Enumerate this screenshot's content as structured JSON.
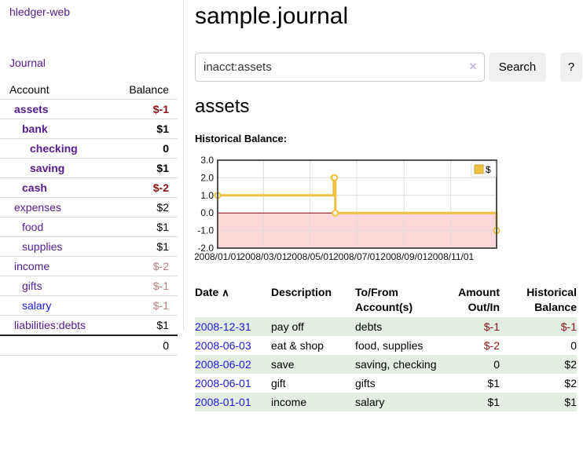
{
  "colors": {
    "link_purple": "#551a8b",
    "link_blue": "#1b1be0",
    "negative_strong": "#8b1212",
    "negative_soft": "#b97f7f",
    "row_stripe_green": "#e2eee2",
    "chart_line_gold": "#edc240",
    "chart_negative_fill": "#fcd8d8",
    "chart_zero_line": "#7c0a0a",
    "chart_border": "#545454",
    "chart_grid": "#dcdcdc"
  },
  "sidebar": {
    "app_title": "hledger-web",
    "journal_link": "Journal",
    "header": {
      "account": "Account",
      "balance": "Balance"
    },
    "accounts": [
      {
        "name": "assets",
        "balance": "$-1",
        "level": 0,
        "bold": true,
        "neg": "strong",
        "link": "purple"
      },
      {
        "name": "bank",
        "balance": "$1",
        "level": 1,
        "bold": true,
        "neg": "none",
        "link": "purple"
      },
      {
        "name": "checking",
        "balance": "0",
        "level": 2,
        "bold": true,
        "neg": "none",
        "link": "purple"
      },
      {
        "name": "saving",
        "balance": "$1",
        "level": 2,
        "bold": true,
        "neg": "none",
        "link": "purple"
      },
      {
        "name": "cash",
        "balance": "$-2",
        "level": 1,
        "bold": true,
        "neg": "strong",
        "link": "purple"
      },
      {
        "name": "expenses",
        "balance": "$2",
        "level": 0,
        "bold": false,
        "neg": "none",
        "link": "purple"
      },
      {
        "name": "food",
        "balance": "$1",
        "level": 1,
        "bold": false,
        "neg": "none",
        "link": "purple"
      },
      {
        "name": "supplies",
        "balance": "$1",
        "level": 1,
        "bold": false,
        "neg": "none",
        "link": "purple"
      },
      {
        "name": "income",
        "balance": "$-2",
        "level": 0,
        "bold": false,
        "neg": "soft",
        "link": "purple"
      },
      {
        "name": "gifts",
        "balance": "$-1",
        "level": 1,
        "bold": false,
        "neg": "soft",
        "link": "purple"
      },
      {
        "name": "salary",
        "balance": "$-1",
        "level": 1,
        "bold": false,
        "neg": "soft",
        "link": "blue"
      },
      {
        "name": "liabilities:debts",
        "balance": "$1",
        "level": 0,
        "bold": false,
        "neg": "none",
        "link": "purple"
      }
    ],
    "total": "0"
  },
  "main": {
    "title": "sample.journal",
    "search": {
      "value": "inacct:assets",
      "clear_icon": "×",
      "search_button": "Search",
      "help_button": "?"
    },
    "account_heading": "assets",
    "chart_title": "Historical Balance:"
  },
  "chart_data": {
    "type": "line",
    "step": true,
    "title": "Historical Balance",
    "legend": "$",
    "legend_position": "top-right",
    "grid": true,
    "xlim": [
      "2008-01-01",
      "2008-12-31"
    ],
    "ylim": [
      -2.0,
      3.0
    ],
    "y_ticks": [
      "3.0",
      "2.0",
      "1.0",
      "0.0",
      "-1.0",
      "-2.0"
    ],
    "y_tick_values": [
      3,
      2,
      1,
      0,
      -1,
      -2
    ],
    "x_ticks": [
      "2008/01/01",
      "2008/03/01",
      "2008/05/01",
      "2008/07/01",
      "2008/09/01",
      "2008/11/01"
    ],
    "x_tick_dates": [
      "2008-01-01",
      "2008-03-01",
      "2008-05-01",
      "2008-07-01",
      "2008-09-01",
      "2008-11-01"
    ],
    "negative_region_below": 0,
    "series": [
      {
        "name": "$",
        "color": "#edc240",
        "points": [
          [
            "2008-01-01",
            1
          ],
          [
            "2008-06-01",
            2
          ],
          [
            "2008-06-02",
            2
          ],
          [
            "2008-06-03",
            0
          ],
          [
            "2008-12-31",
            -1
          ]
        ]
      }
    ]
  },
  "register": {
    "headers": {
      "date": "Date",
      "description": "Description",
      "accounts": "To/From Account(s)",
      "amount": "Amount Out/In",
      "balance": "Historical Balance"
    },
    "sort_icon": "∧",
    "rows": [
      {
        "date": "2008-12-31",
        "description": "pay off",
        "accounts": "debts",
        "amount": "$-1",
        "amount_neg": true,
        "balance": "$-1",
        "balance_neg": true,
        "stripe": true
      },
      {
        "date": "2008-06-03",
        "description": "eat & shop",
        "accounts": "food, supplies",
        "amount": "$-2",
        "amount_neg": true,
        "balance": "0",
        "balance_neg": false,
        "stripe": false
      },
      {
        "date": "2008-06-02",
        "description": "save",
        "accounts": "saving, checking",
        "amount": "0",
        "amount_neg": false,
        "balance": "$2",
        "balance_neg": false,
        "stripe": true
      },
      {
        "date": "2008-06-01",
        "description": "gift",
        "accounts": "gifts",
        "amount": "$1",
        "amount_neg": false,
        "balance": "$2",
        "balance_neg": false,
        "stripe": false
      },
      {
        "date": "2008-01-01",
        "description": "income",
        "accounts": "salary",
        "amount": "$1",
        "amount_neg": false,
        "balance": "$1",
        "balance_neg": false,
        "stripe": true
      }
    ]
  }
}
